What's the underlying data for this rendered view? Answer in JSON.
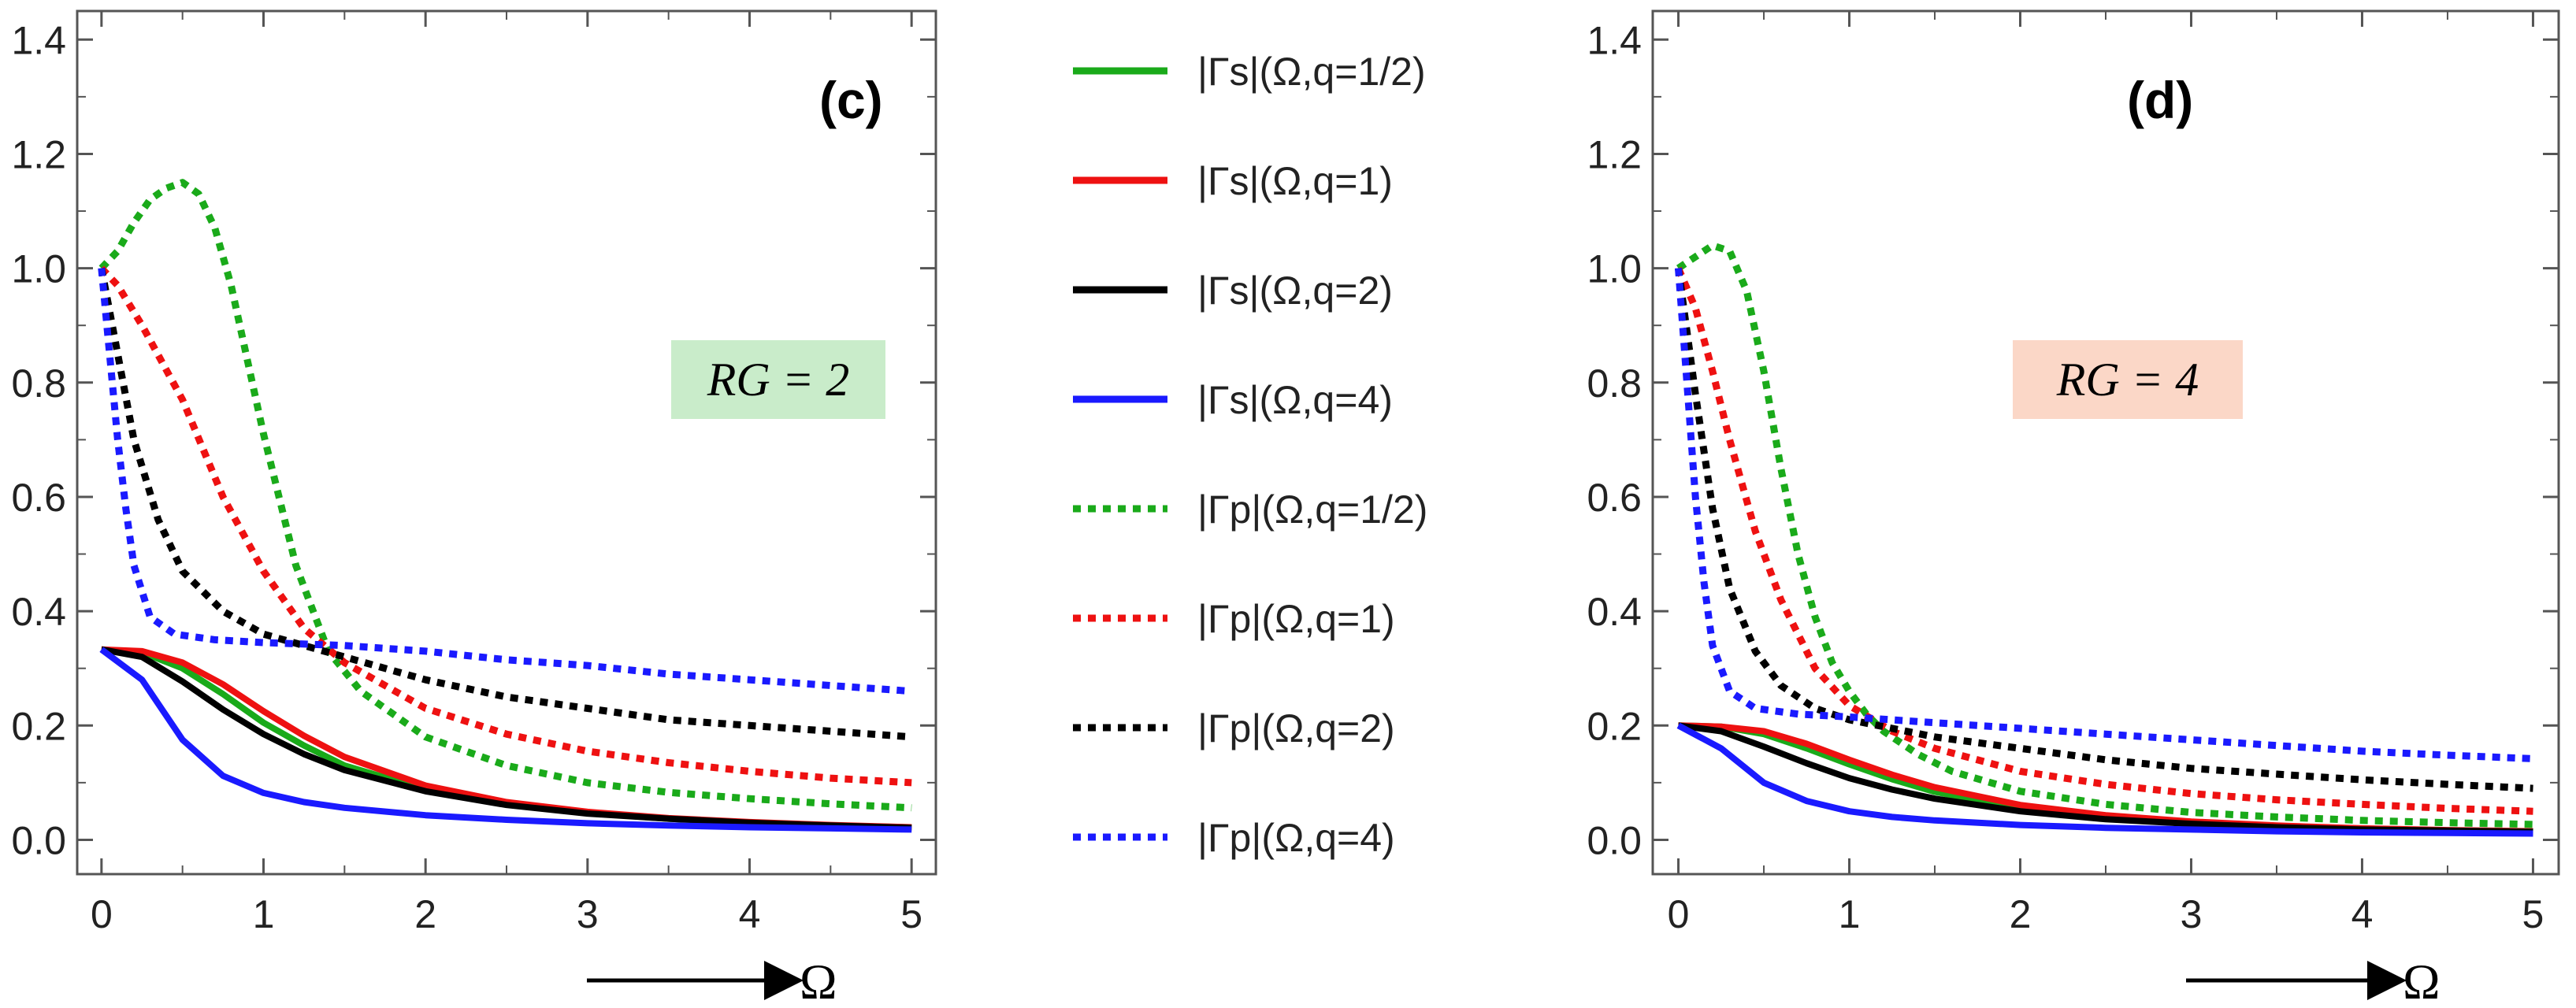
{
  "legend": [
    {
      "name": "|Γs|(Ω,q=1/2)",
      "color": "#1aaa1a",
      "style": "solid"
    },
    {
      "name": "|Γs|(Ω,q=1)",
      "color": "#ee1111",
      "style": "solid"
    },
    {
      "name": "|Γs|(Ω,q=2)",
      "color": "#000000",
      "style": "solid"
    },
    {
      "name": "|Γs|(Ω,q=4)",
      "color": "#1a1aff",
      "style": "solid"
    },
    {
      "name": "|Γp|(Ω,q=1/2)",
      "color": "#1aaa1a",
      "style": "dotted"
    },
    {
      "name": "|Γp|(Ω,q=1)",
      "color": "#ee1111",
      "style": "dotted"
    },
    {
      "name": "|Γp|(Ω,q=2)",
      "color": "#000000",
      "style": "dotted"
    },
    {
      "name": "|Γp|(Ω,q=4)",
      "color": "#1a1aff",
      "style": "dotted"
    }
  ],
  "chart_data": [
    {
      "type": "line",
      "panel_label": "(c)",
      "annotation": "RG = 2",
      "annotation_bg": "#c9ecca",
      "xlabel": "Ω",
      "xlim": [
        -0.15,
        5.15
      ],
      "ylim": [
        -0.06,
        1.45
      ],
      "xticks": [
        0,
        1,
        2,
        3,
        4,
        5
      ],
      "yticks": [
        0.0,
        0.2,
        0.4,
        0.6,
        0.8,
        1.0,
        1.2,
        1.4
      ],
      "series": [
        {
          "name": "|Γs|(Ω,q=1/2)",
          "color": "#1aaa1a",
          "style": "solid",
          "x": [
            0,
            0.25,
            0.5,
            0.75,
            1,
            1.25,
            1.5,
            2,
            2.5,
            3,
            3.5,
            4,
            4.5,
            5
          ],
          "y": [
            0.333,
            0.328,
            0.3,
            0.255,
            0.205,
            0.165,
            0.13,
            0.088,
            0.062,
            0.047,
            0.037,
            0.03,
            0.025,
            0.022
          ]
        },
        {
          "name": "|Γs|(Ω,q=1)",
          "color": "#ee1111",
          "style": "solid",
          "x": [
            0,
            0.25,
            0.5,
            0.75,
            1,
            1.25,
            1.5,
            2,
            2.5,
            3,
            3.5,
            4,
            4.5,
            5
          ],
          "y": [
            0.333,
            0.33,
            0.31,
            0.272,
            0.225,
            0.182,
            0.145,
            0.095,
            0.066,
            0.049,
            0.038,
            0.031,
            0.026,
            0.022
          ]
        },
        {
          "name": "|Γs|(Ω,q=2)",
          "color": "#000000",
          "style": "solid",
          "x": [
            0,
            0.25,
            0.5,
            0.75,
            1,
            1.25,
            1.5,
            2,
            2.5,
            3,
            3.5,
            4,
            4.5,
            5
          ],
          "y": [
            0.333,
            0.32,
            0.277,
            0.228,
            0.185,
            0.15,
            0.122,
            0.085,
            0.061,
            0.046,
            0.037,
            0.03,
            0.025,
            0.021
          ]
        },
        {
          "name": "|Γs|(Ω,q=4)",
          "color": "#1a1aff",
          "style": "solid",
          "x": [
            0,
            0.25,
            0.5,
            0.75,
            1,
            1.25,
            1.5,
            2,
            2.5,
            3,
            3.5,
            4,
            4.5,
            5
          ],
          "y": [
            0.333,
            0.28,
            0.175,
            0.112,
            0.082,
            0.066,
            0.056,
            0.043,
            0.035,
            0.029,
            0.025,
            0.022,
            0.02,
            0.018
          ]
        },
        {
          "name": "|Γp|(Ω,q=1/2)",
          "color": "#1aaa1a",
          "style": "dotted",
          "x": [
            0,
            0.1,
            0.2,
            0.3,
            0.4,
            0.5,
            0.6,
            0.7,
            0.8,
            0.9,
            1.0,
            1.2,
            1.4,
            1.6,
            2,
            2.5,
            3,
            3.5,
            4,
            4.5,
            5
          ],
          "y": [
            1.0,
            1.03,
            1.08,
            1.12,
            1.14,
            1.15,
            1.13,
            1.07,
            0.97,
            0.84,
            0.71,
            0.48,
            0.33,
            0.26,
            0.18,
            0.13,
            0.1,
            0.083,
            0.072,
            0.063,
            0.056
          ]
        },
        {
          "name": "|Γp|(Ω,q=1)",
          "color": "#ee1111",
          "style": "dotted",
          "x": [
            0,
            0.1,
            0.25,
            0.5,
            0.75,
            1,
            1.25,
            1.5,
            2,
            2.5,
            3,
            3.5,
            4,
            4.5,
            5
          ],
          "y": [
            1.0,
            0.97,
            0.9,
            0.77,
            0.6,
            0.47,
            0.37,
            0.31,
            0.23,
            0.185,
            0.155,
            0.135,
            0.12,
            0.108,
            0.1
          ]
        },
        {
          "name": "|Γp|(Ω,q=2)",
          "color": "#000000",
          "style": "dotted",
          "x": [
            0,
            0.1,
            0.2,
            0.35,
            0.5,
            0.75,
            1,
            1.5,
            2,
            2.5,
            3,
            3.5,
            4,
            4.5,
            5
          ],
          "y": [
            1.0,
            0.85,
            0.7,
            0.56,
            0.47,
            0.4,
            0.36,
            0.32,
            0.28,
            0.25,
            0.23,
            0.21,
            0.2,
            0.19,
            0.18
          ]
        },
        {
          "name": "|Γp|(Ω,q=4)",
          "color": "#1a1aff",
          "style": "dotted",
          "x": [
            0,
            0.05,
            0.1,
            0.15,
            0.2,
            0.3,
            0.45,
            0.7,
            1,
            1.5,
            2,
            2.5,
            3,
            3.5,
            4,
            4.5,
            5
          ],
          "y": [
            1.0,
            0.85,
            0.7,
            0.58,
            0.48,
            0.39,
            0.36,
            0.35,
            0.345,
            0.34,
            0.33,
            0.315,
            0.305,
            0.29,
            0.28,
            0.27,
            0.26
          ]
        }
      ]
    },
    {
      "type": "line",
      "panel_label": "(d)",
      "annotation": "RG = 4",
      "annotation_bg": "#fbd7c7",
      "xlabel": "Ω",
      "xlim": [
        -0.15,
        5.15
      ],
      "ylim": [
        -0.06,
        1.45
      ],
      "xticks": [
        0,
        1,
        2,
        3,
        4,
        5
      ],
      "yticks": [
        0.0,
        0.2,
        0.4,
        0.6,
        0.8,
        1.0,
        1.2,
        1.4
      ],
      "series": [
        {
          "name": "|Γs|(Ω,q=1/2)",
          "color": "#1aaa1a",
          "style": "solid",
          "x": [
            0,
            0.25,
            0.5,
            0.75,
            1,
            1.25,
            1.5,
            2,
            2.5,
            3,
            3.5,
            4,
            4.5,
            5
          ],
          "y": [
            0.2,
            0.198,
            0.185,
            0.16,
            0.132,
            0.106,
            0.084,
            0.055,
            0.039,
            0.029,
            0.023,
            0.019,
            0.016,
            0.014
          ]
        },
        {
          "name": "|Γs|(Ω,q=1)",
          "color": "#ee1111",
          "style": "solid",
          "x": [
            0,
            0.25,
            0.5,
            0.75,
            1,
            1.25,
            1.5,
            2,
            2.5,
            3,
            3.5,
            4,
            4.5,
            5
          ],
          "y": [
            0.2,
            0.198,
            0.19,
            0.168,
            0.14,
            0.114,
            0.092,
            0.061,
            0.043,
            0.032,
            0.025,
            0.02,
            0.017,
            0.015
          ]
        },
        {
          "name": "|Γs|(Ω,q=2)",
          "color": "#000000",
          "style": "solid",
          "x": [
            0,
            0.25,
            0.5,
            0.75,
            1,
            1.25,
            1.5,
            2,
            2.5,
            3,
            3.5,
            4,
            4.5,
            5
          ],
          "y": [
            0.2,
            0.19,
            0.163,
            0.134,
            0.108,
            0.088,
            0.072,
            0.05,
            0.036,
            0.028,
            0.022,
            0.018,
            0.016,
            0.014
          ]
        },
        {
          "name": "|Γs|(Ω,q=4)",
          "color": "#1a1aff",
          "style": "solid",
          "x": [
            0,
            0.25,
            0.5,
            0.75,
            1,
            1.25,
            1.5,
            2,
            2.5,
            3,
            3.5,
            4,
            4.5,
            5
          ],
          "y": [
            0.2,
            0.16,
            0.1,
            0.068,
            0.05,
            0.04,
            0.034,
            0.026,
            0.021,
            0.018,
            0.015,
            0.013,
            0.012,
            0.011
          ]
        },
        {
          "name": "|Γp|(Ω,q=1/2)",
          "color": "#1aaa1a",
          "style": "dotted",
          "x": [
            0,
            0.1,
            0.2,
            0.3,
            0.4,
            0.5,
            0.6,
            0.7,
            0.8,
            0.9,
            1.0,
            1.1,
            1.2,
            1.4,
            1.6,
            2,
            2.5,
            3,
            3.5,
            4,
            4.5,
            5
          ],
          "y": [
            1.0,
            1.02,
            1.04,
            1.03,
            0.96,
            0.82,
            0.65,
            0.5,
            0.39,
            0.31,
            0.26,
            0.22,
            0.19,
            0.15,
            0.12,
            0.085,
            0.062,
            0.048,
            0.04,
            0.034,
            0.03,
            0.027
          ]
        },
        {
          "name": "|Γp|(Ω,q=1)",
          "color": "#ee1111",
          "style": "dotted",
          "x": [
            0,
            0.1,
            0.2,
            0.3,
            0.45,
            0.6,
            0.8,
            1,
            1.25,
            1.5,
            2,
            2.5,
            3,
            3.5,
            4,
            4.5,
            5
          ],
          "y": [
            1.0,
            0.93,
            0.82,
            0.7,
            0.54,
            0.42,
            0.3,
            0.235,
            0.19,
            0.16,
            0.12,
            0.097,
            0.081,
            0.07,
            0.062,
            0.055,
            0.05
          ]
        },
        {
          "name": "|Γp|(Ω,q=2)",
          "color": "#000000",
          "style": "dotted",
          "x": [
            0,
            0.1,
            0.2,
            0.3,
            0.45,
            0.6,
            0.8,
            1,
            1.5,
            2,
            2.5,
            3,
            3.5,
            4,
            4.5,
            5
          ],
          "y": [
            1.0,
            0.78,
            0.58,
            0.44,
            0.33,
            0.27,
            0.23,
            0.21,
            0.18,
            0.16,
            0.14,
            0.125,
            0.115,
            0.105,
            0.097,
            0.09
          ]
        },
        {
          "name": "|Γp|(Ω,q=4)",
          "color": "#1a1aff",
          "style": "dotted",
          "x": [
            0,
            0.05,
            0.1,
            0.15,
            0.2,
            0.3,
            0.45,
            0.7,
            1,
            1.5,
            2,
            2.5,
            3,
            3.5,
            4,
            4.5,
            5
          ],
          "y": [
            1.0,
            0.8,
            0.6,
            0.45,
            0.34,
            0.26,
            0.23,
            0.22,
            0.215,
            0.205,
            0.195,
            0.185,
            0.175,
            0.165,
            0.155,
            0.148,
            0.142
          ]
        }
      ]
    }
  ]
}
